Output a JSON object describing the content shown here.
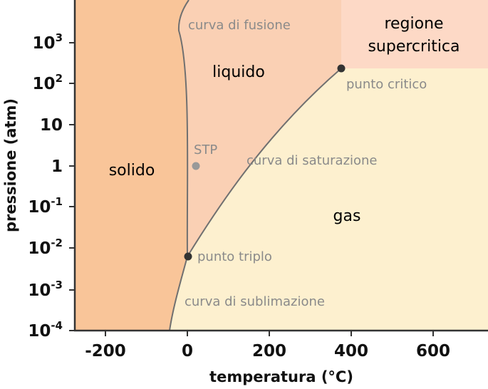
{
  "axes": {
    "xlabel": "temperatura (°C)",
    "ylabel": "pressione (atm)",
    "x_ticks": [
      -200,
      0,
      200,
      400,
      600
    ],
    "y_ticks": [
      {
        "base": "10",
        "exp": "-4"
      },
      {
        "base": "10",
        "exp": "-3"
      },
      {
        "base": "10",
        "exp": "-2"
      },
      {
        "base": "10",
        "exp": "-1"
      },
      {
        "base": "1",
        "exp": ""
      },
      {
        "base": "10",
        "exp": ""
      },
      {
        "base": "10",
        "exp": "2"
      },
      {
        "base": "10",
        "exp": "3"
      }
    ]
  },
  "regions": {
    "solid": "solido",
    "liquid": "liquido",
    "gas": "gas",
    "supercritical_line1": "regione",
    "supercritical_line2": "supercritica"
  },
  "annotations": {
    "melting_curve": "curva di fusione",
    "critical_point": "punto critico",
    "stp": "STP",
    "saturation_curve": "curva di saturazione",
    "triple_point": "punto triplo",
    "sublimation_curve": "curva di sublimazione"
  },
  "colors": {
    "solid": "#f9c599",
    "liquid": "#fad0b4",
    "gas": "#fdf0cf",
    "supercritical": "#fdd9c6",
    "curve": "#707070",
    "point": "#333333",
    "stp_point": "#999999"
  }
}
